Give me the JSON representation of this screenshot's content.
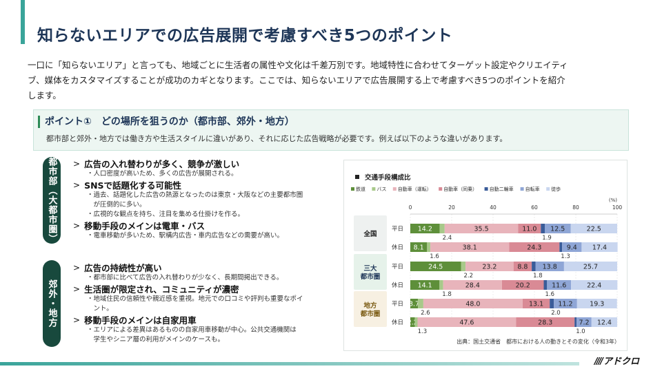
{
  "header": {
    "title": "知らないエリアでの広告展開で考慮すべき5つのポイント"
  },
  "intro": {
    "line1": "一口に「知らないエリア」と言っても、地域ごとに生活者の属性や文化は千差万別です。地域特性に合わせてターゲット設定やクリエイティ",
    "line2": "ブ、媒体をカスタマイズすることが成功のカギとなります。ここでは、知らないエリアで広告展開する上で考慮すべき5つのポイントを紹介",
    "line3": "します。"
  },
  "point": {
    "title": "ポイント①　どの場所を狙うのか（都市部、郊外・地方）",
    "desc": "都市部と郊外・地方では働き方や生活スタイルに違いがあり、それに応じた広告戦略が必要です。例えば以下のような違いがあります。"
  },
  "urban": {
    "label": "都市部（大都市圏）",
    "items": [
      {
        "head": "広告の入れ替わりが多く、競争が激しい",
        "subs": [
          "・人口密度が高いため、多くの広告が展開される。"
        ]
      },
      {
        "head": "SNSで話題化する可能性",
        "subs": [
          "・過去、話題化した広告の熱源となったのは東京・大阪などの主要都市圏",
          "　が圧倒的に多い。",
          "・広視的な観点を持ち、注目を集める仕掛けを作る。"
        ]
      },
      {
        "head": "移動手段のメインは電車・バス",
        "subs": [
          "・電車移動が多いため、駅構内広告・車内広告などの需要が高い。"
        ]
      }
    ]
  },
  "rural": {
    "label": "郊外・地方",
    "items": [
      {
        "head": "広告の持続性が高い",
        "subs": [
          "・都市部に比べて広告の入れ替わりが少なく、長期間掲出できる。"
        ]
      },
      {
        "head": "生活圏が限定され、コミュニティが濃密",
        "subs": [
          "・地域住民の信頼性や親近感を重視。地元での口コミや評判も重要なポイ",
          "　ント。"
        ]
      },
      {
        "head": "移動手段のメインは自家用車",
        "subs": [
          "・エリアによる差異はあるものの自家用車移動が中心。公共交通機関は",
          "　学生やシニア層の利用がメインのケースも。"
        ]
      }
    ]
  },
  "chart_data": {
    "type": "bar",
    "orientation": "horizontal",
    "stacked": true,
    "title": "交通手段構成比",
    "unit": "(%)",
    "xlim": [
      0,
      100
    ],
    "xticks": [
      "0",
      "20",
      "40",
      "60",
      "80",
      "100"
    ],
    "groups": [
      "全国",
      "三大\n都市圏",
      "地方\n都市圏"
    ],
    "categories": [
      "平日",
      "休日",
      "平日",
      "休日",
      "平日",
      "休日"
    ],
    "category_groups": [
      0,
      0,
      1,
      1,
      2,
      2
    ],
    "series": [
      {
        "name": "鉄道",
        "color": "#5e8f3a",
        "values": [
          14.2,
          8.1,
          24.5,
          14.1,
          3.7,
          2.2
        ]
      },
      {
        "name": "バス",
        "color": "#a8c98a",
        "values": [
          2.4,
          1.6,
          2.2,
          1.8,
          2.6,
          1.3
        ]
      },
      {
        "name": "自動車（運転）",
        "color": "#e8b4bb",
        "values": [
          35.5,
          38.1,
          23.2,
          28.4,
          48.0,
          47.6
        ]
      },
      {
        "name": "自動車（同乗）",
        "color": "#d98a95",
        "values": [
          11.0,
          24.3,
          8.8,
          20.2,
          13.1,
          28.3
        ]
      },
      {
        "name": "自動二輪車",
        "color": "#3a5c99",
        "values": [
          1.9,
          1.3,
          1.8,
          1.6,
          2.0,
          1.0
        ]
      },
      {
        "name": "自転車",
        "color": "#8fa6d6",
        "values": [
          12.5,
          9.4,
          13.8,
          11.6,
          11.2,
          7.2
        ]
      },
      {
        "name": "徒歩",
        "color": "#c9d6ef",
        "values": [
          22.5,
          17.4,
          25.7,
          22.4,
          19.3,
          12.4
        ]
      }
    ],
    "source": "出典：国土交通省　都市における人の動きとその変化（令和3年）"
  },
  "footer": {
    "logo": "アドクロ"
  }
}
